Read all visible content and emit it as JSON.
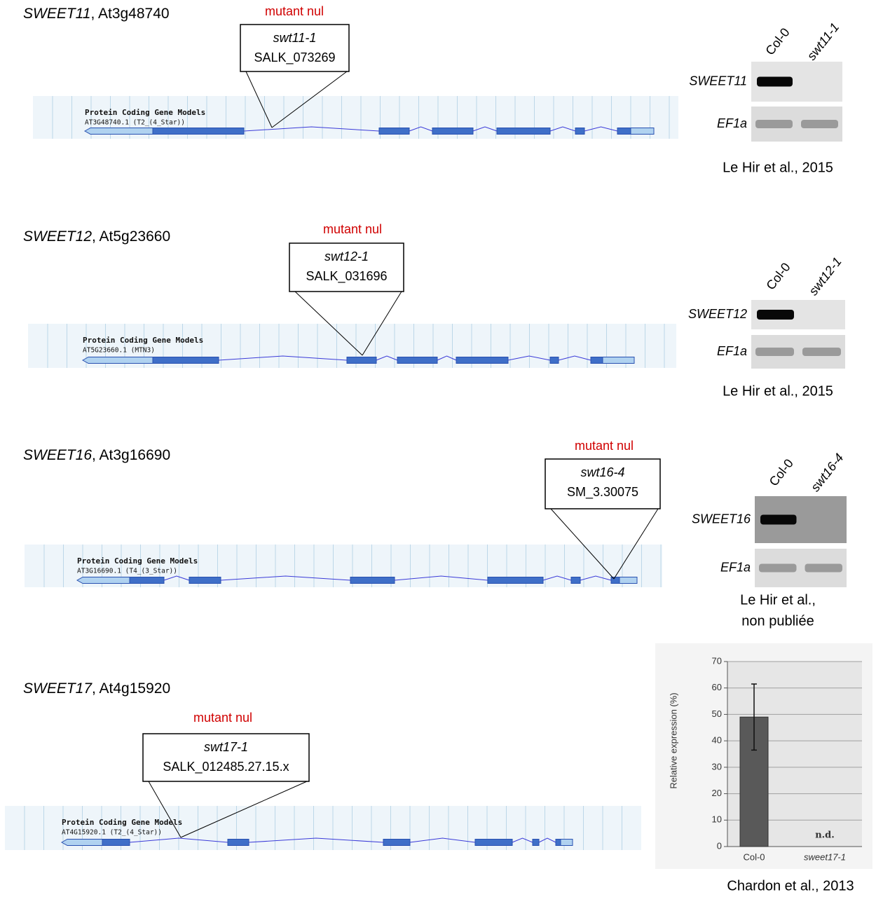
{
  "panels": [
    {
      "title": [
        "SWEET11",
        ", At3g48740"
      ],
      "mutant_note": "mutant nul",
      "allele": "swt11-1",
      "insertion": "SALK_073269",
      "track_title": "Protein Coding Gene Models",
      "transcript": "AT3G48740.1 (T2_(4_Star))",
      "gel": {
        "lanes": [
          "Col-0",
          "swt11-1"
        ],
        "rows": [
          "SWEET11",
          "EF1a"
        ]
      },
      "citation": [
        "Le Hir et al., 2015"
      ]
    },
    {
      "title": [
        "SWEET12",
        ", At5g23660"
      ],
      "mutant_note": "mutant nul",
      "allele": "swt12-1",
      "insertion": "SALK_031696",
      "track_title": "Protein Coding Gene Models",
      "transcript": "AT5G23660.1 (MTN3)",
      "gel": {
        "lanes": [
          "Col-0",
          "swt12-1"
        ],
        "rows": [
          "SWEET12",
          "EF1a"
        ]
      },
      "citation": [
        "Le Hir et al., 2015"
      ]
    },
    {
      "title": [
        "SWEET16",
        ", At3g16690"
      ],
      "mutant_note": "mutant nul",
      "allele": "swt16-4",
      "insertion": "SM_3.30075",
      "track_title": "Protein Coding Gene Models",
      "transcript": "AT3G16690.1 (T4_(3_Star))",
      "gel": {
        "lanes": [
          "Col-0",
          "swt16-4"
        ],
        "rows": [
          "SWEET16",
          "EF1a"
        ]
      },
      "citation": [
        "Le Hir et al.,",
        "non publiée"
      ]
    },
    {
      "title": [
        "SWEET17",
        ", At4g15920"
      ],
      "mutant_note": "mutant nul",
      "allele": "swt17-1",
      "insertion": "SALK_012485.27.15.x",
      "track_title": "Protein Coding Gene Models",
      "transcript": "AT4G15920.1 (T2_(4_Star))",
      "citation": [
        "Chardon et al., 2013"
      ]
    }
  ],
  "chart_data": {
    "type": "bar",
    "y_label": "Relative expression (%)",
    "categories": [
      "Col-0",
      "sweet17-1"
    ],
    "values": [
      49,
      null
    ],
    "errors": [
      12.5,
      null
    ],
    "value_labels": [
      null,
      "n.d."
    ],
    "color": "#595959",
    "ylim": [
      0,
      70
    ],
    "yticks": [
      0,
      10,
      20,
      30,
      40,
      50,
      60,
      70
    ],
    "grid": true
  }
}
